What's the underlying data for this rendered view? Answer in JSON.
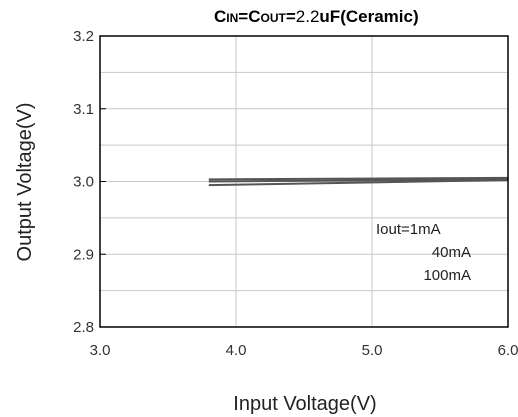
{
  "chart_data": {
    "type": "line",
    "title": "",
    "condition": {
      "prefix_small_1": "C",
      "prefix_small_1_sub": "IN",
      "eq1": "=",
      "prefix_small_2": "C",
      "prefix_small_2_sub": "OUT",
      "eq2": "=",
      "value": "2.2",
      "suffix": "uF(Ceramic)"
    },
    "xlabel": "Input Voltage(V)",
    "ylabel": "Output Voltage(V)",
    "xlim": [
      3.0,
      6.0
    ],
    "ylim": [
      2.8,
      3.2
    ],
    "x_ticks": [
      3.0,
      4.0,
      5.0,
      6.0
    ],
    "x_tick_labels": [
      "3.0",
      "4.0",
      "5.0",
      "6.0"
    ],
    "y_ticks": [
      2.8,
      2.9,
      3.0,
      3.1,
      3.2
    ],
    "y_tick_labels": [
      "2.8",
      "2.9",
      "3.0",
      "3.1",
      "3.2"
    ],
    "grid": true,
    "series": [
      {
        "name": "Iout=1mA",
        "x": [
          3.8,
          6.0
        ],
        "y": [
          3.003,
          3.005
        ]
      },
      {
        "name": "40mA",
        "x": [
          3.8,
          6.0
        ],
        "y": [
          3.0,
          3.003
        ]
      },
      {
        "name": "100mA",
        "x": [
          3.8,
          6.0
        ],
        "y": [
          2.995,
          3.002
        ]
      }
    ],
    "annotations": [
      "Iout=1mA",
      "40mA",
      "100mA"
    ],
    "colors": {
      "series": "#555555",
      "grid": "#c9c9c9",
      "axis": "#000000"
    }
  }
}
